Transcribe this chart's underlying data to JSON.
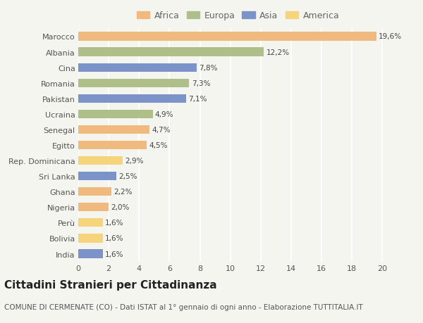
{
  "countries": [
    "Marocco",
    "Albania",
    "Cina",
    "Romania",
    "Pakistan",
    "Ucraina",
    "Senegal",
    "Egitto",
    "Rep. Dominicana",
    "Sri Lanka",
    "Ghana",
    "Nigeria",
    "Perù",
    "Bolivia",
    "India"
  ],
  "values": [
    19.6,
    12.2,
    7.8,
    7.3,
    7.1,
    4.9,
    4.7,
    4.5,
    2.9,
    2.5,
    2.2,
    2.0,
    1.6,
    1.6,
    1.6
  ],
  "labels": [
    "19,6%",
    "12,2%",
    "7,8%",
    "7,3%",
    "7,1%",
    "4,9%",
    "4,7%",
    "4,5%",
    "2,9%",
    "2,5%",
    "2,2%",
    "2,0%",
    "1,6%",
    "1,6%",
    "1,6%"
  ],
  "continents": [
    "Africa",
    "Europa",
    "Asia",
    "Europa",
    "Asia",
    "Europa",
    "Africa",
    "Africa",
    "America",
    "Asia",
    "Africa",
    "Africa",
    "America",
    "America",
    "Asia"
  ],
  "colors": {
    "Africa": "#F0B97E",
    "Europa": "#AEBF8A",
    "Asia": "#7B93C8",
    "America": "#F5D47C"
  },
  "legend_order": [
    "Africa",
    "Europa",
    "Asia",
    "America"
  ],
  "xlim": [
    0,
    21
  ],
  "xticks": [
    0,
    2,
    4,
    6,
    8,
    10,
    12,
    14,
    16,
    18,
    20
  ],
  "title": "Cittadini Stranieri per Cittadinanza",
  "subtitle": "COMUNE DI CERMENATE (CO) - Dati ISTAT al 1° gennaio di ogni anno - Elaborazione TUTTITALIA.IT",
  "bg_color": "#F5F5F0",
  "bar_height": 0.55,
  "title_fontsize": 11,
  "subtitle_fontsize": 7.5,
  "label_fontsize": 7.5,
  "tick_fontsize": 8,
  "legend_fontsize": 9
}
